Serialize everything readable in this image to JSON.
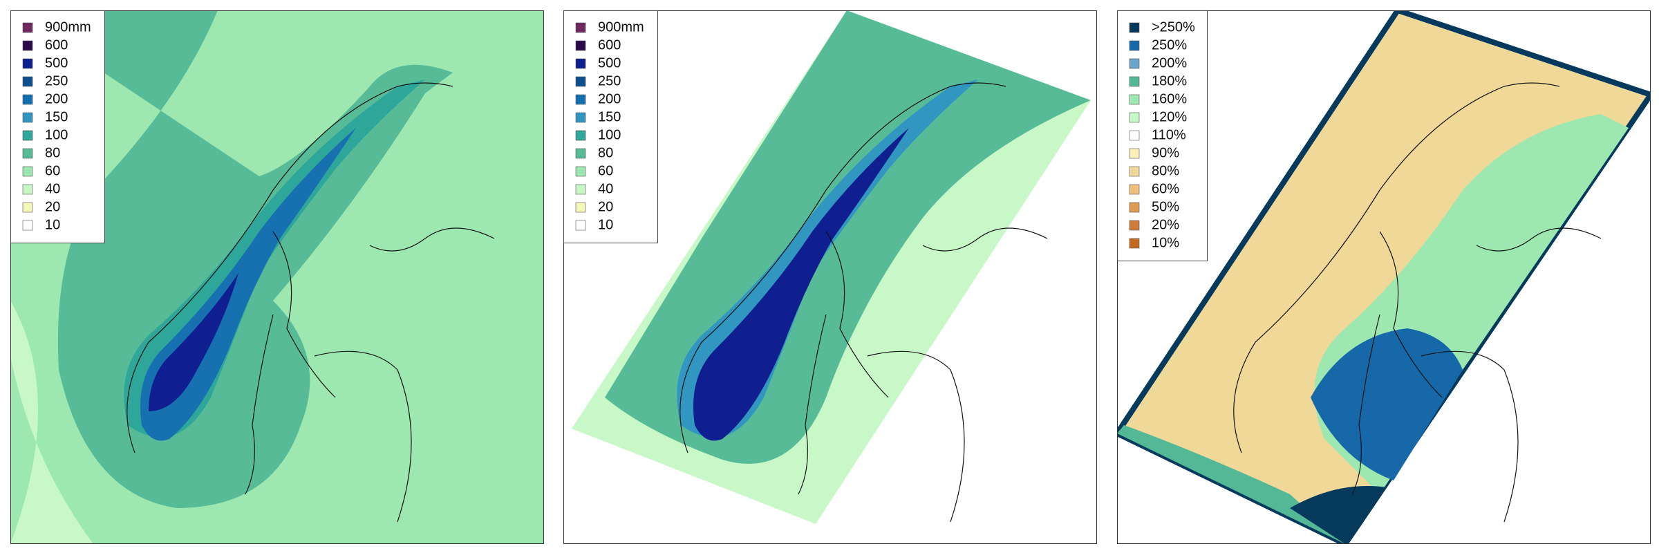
{
  "panels": [
    {
      "legend": [
        {
          "label": "900mm",
          "color": "#6e2a5c"
        },
        {
          "label": "600",
          "color": "#2a0a4a"
        },
        {
          "label": "500",
          "color": "#0f1f8f"
        },
        {
          "label": "250",
          "color": "#0c4f8f"
        },
        {
          "label": "200",
          "color": "#1770b0"
        },
        {
          "label": "150",
          "color": "#3197c0"
        },
        {
          "label": "100",
          "color": "#2ea79a"
        },
        {
          "label": "80",
          "color": "#58bb98"
        },
        {
          "label": "60",
          "color": "#9de8b0"
        },
        {
          "label": "40",
          "color": "#c8f8c8"
        },
        {
          "label": "20",
          "color": "#f2f6b8"
        },
        {
          "label": "10",
          "color": "#ffffff"
        }
      ]
    },
    {
      "legend": [
        {
          "label": "900mm",
          "color": "#6e2a5c"
        },
        {
          "label": "600",
          "color": "#2a0a4a"
        },
        {
          "label": "500",
          "color": "#0f1f8f"
        },
        {
          "label": "250",
          "color": "#0c4f8f"
        },
        {
          "label": "200",
          "color": "#1770b0"
        },
        {
          "label": "150",
          "color": "#3197c0"
        },
        {
          "label": "100",
          "color": "#2ea79a"
        },
        {
          "label": "80",
          "color": "#58bb98"
        },
        {
          "label": "60",
          "color": "#9de8b0"
        },
        {
          "label": "40",
          "color": "#c8f8c8"
        },
        {
          "label": "20",
          "color": "#f2f6b8"
        },
        {
          "label": "10",
          "color": "#ffffff"
        }
      ]
    },
    {
      "legend": [
        {
          "label": ">250%",
          "color": "#053a5c"
        },
        {
          "label": "250%",
          "color": "#1668a8"
        },
        {
          "label": "200%",
          "color": "#6aa6cc"
        },
        {
          "label": "180%",
          "color": "#52b896"
        },
        {
          "label": "160%",
          "color": "#9de8b0"
        },
        {
          "label": "120%",
          "color": "#c8f8c8"
        },
        {
          "label": "110%",
          "color": "#ffffff"
        },
        {
          "label": "90%",
          "color": "#fbf0b8"
        },
        {
          "label": "80%",
          "color": "#f0d898"
        },
        {
          "label": "60%",
          "color": "#eec07c"
        },
        {
          "label": "50%",
          "color": "#de9a52"
        },
        {
          "label": "20%",
          "color": "#cf7c3a"
        },
        {
          "label": "10%",
          "color": "#c06a20"
        }
      ]
    }
  ]
}
